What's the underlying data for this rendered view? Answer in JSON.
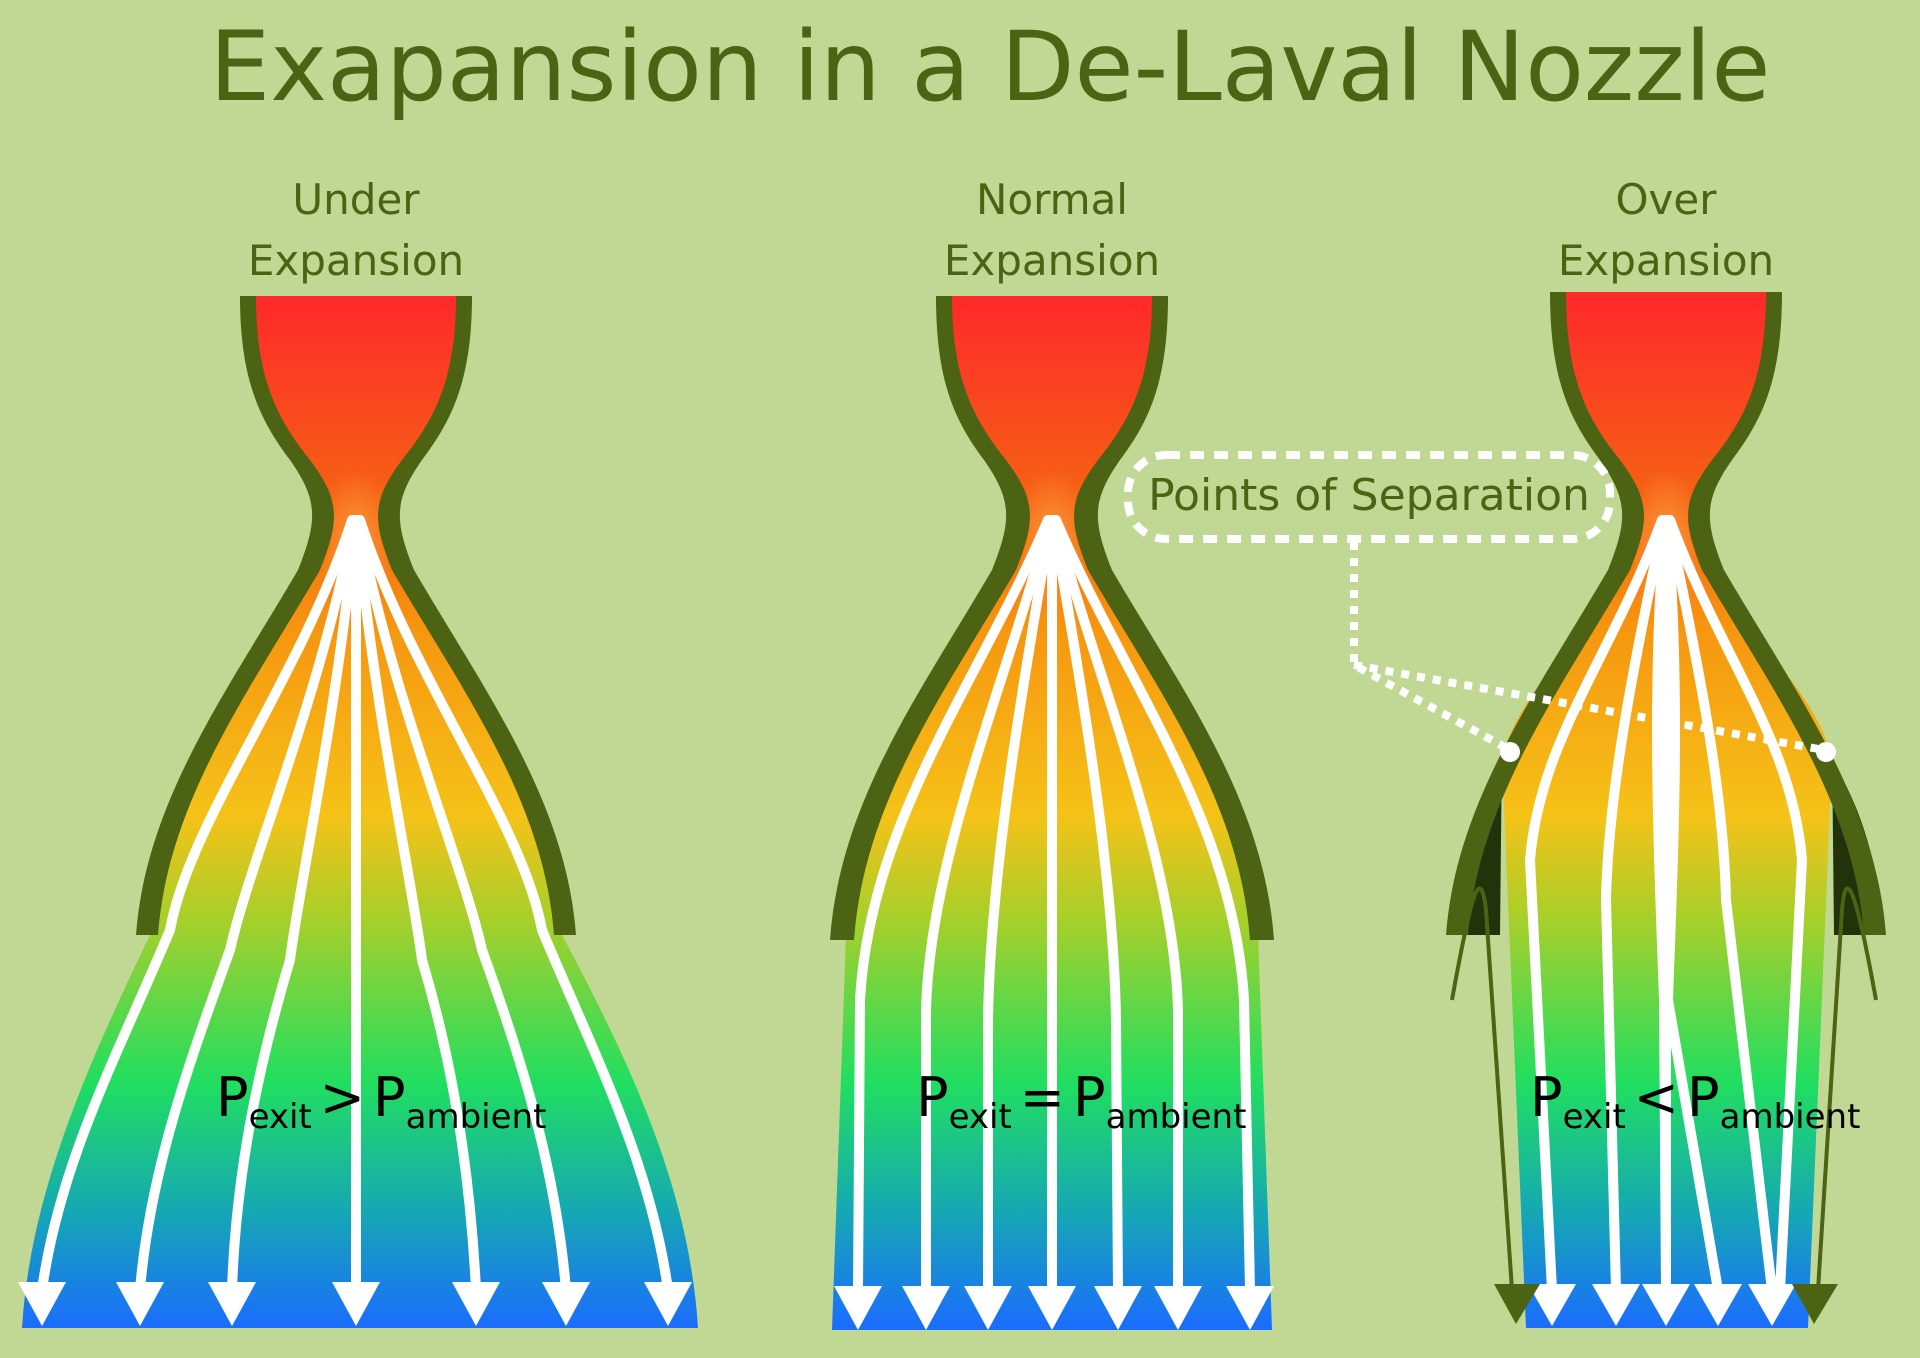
{
  "title": "Exapansion in a De-Laval Nozzle",
  "panels": [
    {
      "label_line1": "Under",
      "label_line2": "Expansion",
      "equation": {
        "left": "P",
        "left_sub": "exit",
        "op": ">",
        "right": "P",
        "right_sub": "ambient"
      }
    },
    {
      "label_line1": "Normal",
      "label_line2": "Expansion",
      "equation": {
        "left": "P",
        "left_sub": "exit",
        "op": "=",
        "right": "P",
        "right_sub": "ambient"
      }
    },
    {
      "label_line1": "Over",
      "label_line2": "Expansion",
      "equation": {
        "left": "P",
        "left_sub": "exit",
        "op": "<",
        "right": "P",
        "right_sub": "ambient"
      }
    }
  ],
  "callout": "Points of Separation",
  "colors": {
    "background": "#c0d894",
    "text": "#4b6313",
    "nozzle_wall": "#4b6313",
    "separation_region": "#22330c",
    "flow_top": "#ff2a2a",
    "flow_throat": "#f46a10",
    "flow_mid": "#f5c218",
    "flow_lower": "#21de60",
    "flow_bottom": "#1a6cff",
    "streamline": "#ffffff"
  }
}
